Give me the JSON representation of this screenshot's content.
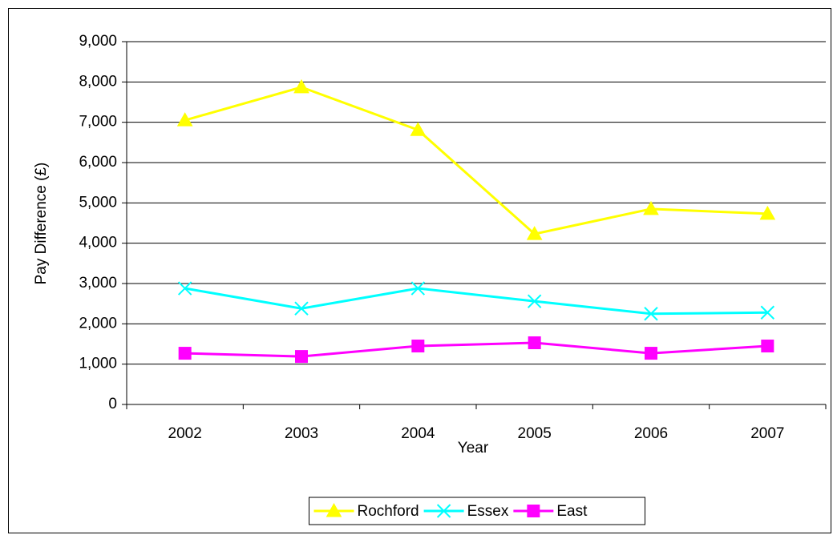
{
  "chart_data": {
    "type": "line",
    "x_label": "Year",
    "y_label": "Pay Difference (£)",
    "categories": [
      "2002",
      "2003",
      "2004",
      "2005",
      "2006",
      "2007"
    ],
    "series": [
      {
        "name": "Rochford",
        "color": "#ffff00",
        "marker": "triangle",
        "values": [
          7050,
          7870,
          6810,
          4230,
          4850,
          4730
        ]
      },
      {
        "name": "Essex",
        "color": "#00ffff",
        "marker": "x",
        "values": [
          2880,
          2380,
          2880,
          2560,
          2250,
          2280
        ]
      },
      {
        "name": "East",
        "color": "#ff00ff",
        "marker": "square",
        "values": [
          1270,
          1190,
          1450,
          1530,
          1270,
          1450
        ]
      }
    ],
    "ylim": [
      0,
      9000
    ],
    "yticks": [
      0,
      {
        "value": 1000,
        "label": "1,000"
      },
      {
        "value": 2000,
        "label": "2,000"
      },
      {
        "value": 3000,
        "label": "3,000"
      },
      {
        "value": 4000,
        "label": "4,000"
      },
      {
        "value": 5000,
        "label": "5,000"
      },
      {
        "value": 6000,
        "label": "6,000"
      },
      {
        "value": 7000,
        "label": "7,000"
      },
      {
        "value": 8000,
        "label": "8,000"
      },
      {
        "value": 9000,
        "label": "9,000"
      }
    ],
    "grid": true,
    "legend": "bottom"
  }
}
